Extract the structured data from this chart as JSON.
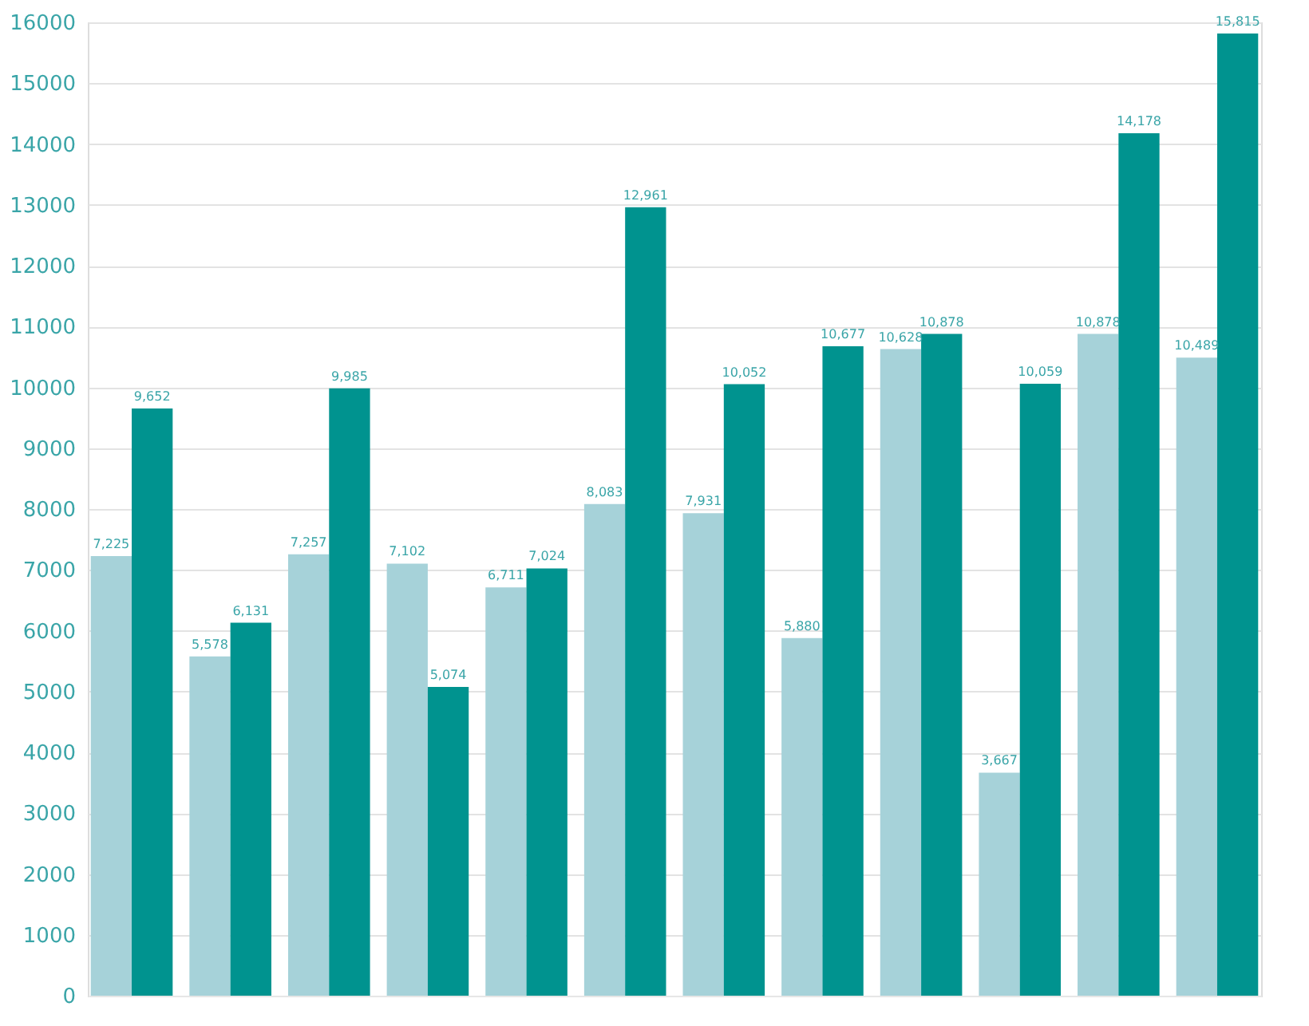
{
  "chart_data": {
    "type": "bar",
    "categories": [
      null,
      null,
      null,
      null,
      null,
      null,
      null,
      null,
      null,
      null,
      null,
      null
    ],
    "series": [
      {
        "color": "#a6d2d9",
        "values": [
          7225,
          5578,
          7257,
          7102,
          6711,
          8083,
          7931,
          5880,
          10628,
          3667,
          10878,
          10489
        ],
        "value_labels": [
          "7,225",
          "5,578",
          "7,257",
          "7,102",
          "6,711",
          "8,083",
          "7,931",
          "5,880",
          "10,628",
          "3,667",
          "10,878",
          "10,489"
        ]
      },
      {
        "color": "#00938f",
        "values": [
          9652,
          6131,
          9985,
          5074,
          7024,
          12961,
          10052,
          10677,
          10878,
          10059,
          14178,
          15815
        ],
        "value_labels": [
          "9,652",
          "6,131",
          "9,985",
          "5,074",
          "7,024",
          "12,961",
          "10,052",
          "10,677",
          "10,878",
          "10,059",
          "14,178",
          "15,815"
        ]
      }
    ],
    "ylim": [
      0,
      16000
    ],
    "yticks": [
      0,
      1000,
      2000,
      3000,
      4000,
      5000,
      6000,
      7000,
      8000,
      9000,
      10000,
      11000,
      12000,
      13000,
      14000,
      15000,
      16000
    ],
    "grid": "y",
    "tick_labels": "y",
    "legend": false
  }
}
